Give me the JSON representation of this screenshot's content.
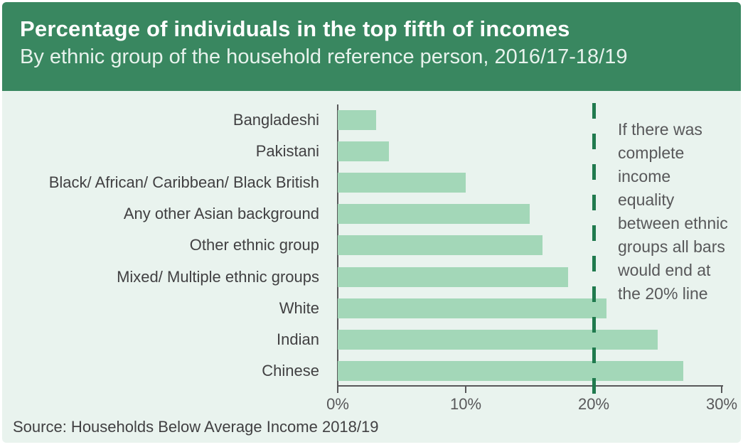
{
  "header": {
    "title": "Percentage of individuals in the top fifth of incomes",
    "subtitle": "By ethnic group of the household reference person, 2016/17-18/19"
  },
  "chart_data": {
    "type": "bar",
    "orientation": "horizontal",
    "title": "Percentage of individuals in the top fifth of incomes",
    "subtitle": "By ethnic group of the household reference person, 2016/17-18/19",
    "categories": [
      "Bangladeshi",
      "Pakistani",
      "Black/ African/ Caribbean/ Black British",
      "Any other Asian background",
      "Other ethnic group",
      "Mixed/ Multiple ethnic groups",
      "White",
      "Indian",
      "Chinese"
    ],
    "values": [
      3,
      4,
      10,
      15,
      16,
      18,
      21,
      25,
      27
    ],
    "xlabel": "",
    "ylabel": "",
    "xlim": [
      0,
      30
    ],
    "x_tick_values": [
      0,
      10,
      20,
      30
    ],
    "x_tick_labels": [
      "0%",
      "10%",
      "20%",
      "30%"
    ],
    "grid": false,
    "legend": false,
    "reference_line": {
      "value": 20,
      "style": "dashed",
      "label": "20% line"
    },
    "annotation_lines": [
      "If there was",
      "complete",
      "income",
      "equality",
      "between ethnic",
      "groups all bars",
      "would end at",
      "the 20% line"
    ],
    "colors": {
      "header_background": "#398760",
      "chart_background": "#e9f3ee",
      "bar": "#a3d7b8",
      "reference_line": "#207a4e",
      "axis": "#58585a",
      "title_text": "#ffffff",
      "subtitle_text": "#e7f2ec",
      "label_text": "#414042"
    }
  },
  "footer": {
    "source": "Source: Households Below Average Income 2018/19"
  }
}
